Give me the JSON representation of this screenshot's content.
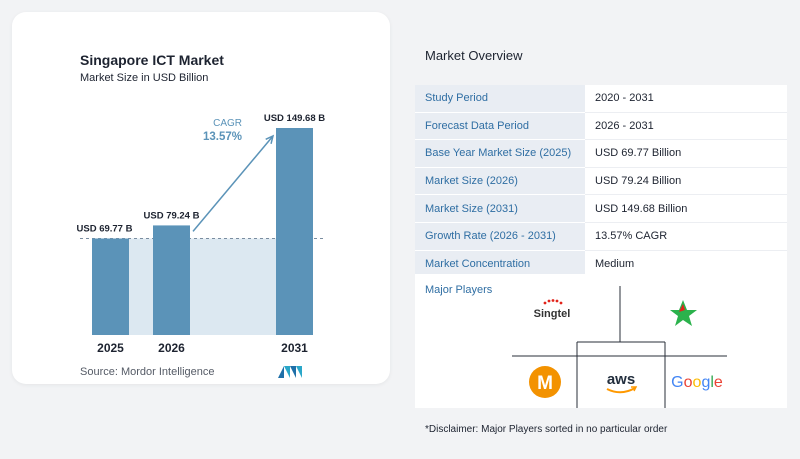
{
  "chart_data": {
    "type": "bar",
    "title": "Singapore ICT Market",
    "subtitle": "Market Size in USD Billion",
    "categories": [
      "2025",
      "2026",
      "2031"
    ],
    "values": [
      69.77,
      79.24,
      149.68
    ],
    "value_labels": [
      "USD 69.77 B",
      "USD 79.24 B",
      "USD 149.68 B"
    ],
    "cagr_label": "CAGR",
    "cagr_value": "13.57%",
    "source": "Source:  Mordor Intelligence",
    "bar_color": "#5b93b8",
    "band_color": "#dce8f1",
    "arrow_color": "#5b93b8"
  },
  "overview": {
    "title": "Market Overview",
    "rows": [
      {
        "key": "Study Period",
        "value": "2020 - 2031"
      },
      {
        "key": "Forecast Data Period",
        "value": "2026 - 2031"
      },
      {
        "key": "Base Year Market Size (2025)",
        "value": "USD 69.77 Billion"
      },
      {
        "key": "Market Size (2026)",
        "value": "USD 79.24 Billion"
      },
      {
        "key": "Market Size (2031)",
        "value": "USD 149.68 Billion"
      },
      {
        "key": "Growth Rate (2026 - 2031)",
        "value": "13.57% CAGR"
      },
      {
        "key": "Market Concentration",
        "value": "Medium"
      }
    ]
  },
  "players": {
    "label": "Major Players",
    "logos": [
      {
        "name": "singtel-logo",
        "text": "Singtel"
      },
      {
        "name": "starhub-logo",
        "text": ""
      },
      {
        "name": "m1-logo",
        "text": "M"
      },
      {
        "name": "aws-logo",
        "text": "aws"
      },
      {
        "name": "google-logo",
        "text": "Google"
      }
    ]
  },
  "disclaimer": "*Disclaimer: Major Players sorted in no particular order"
}
